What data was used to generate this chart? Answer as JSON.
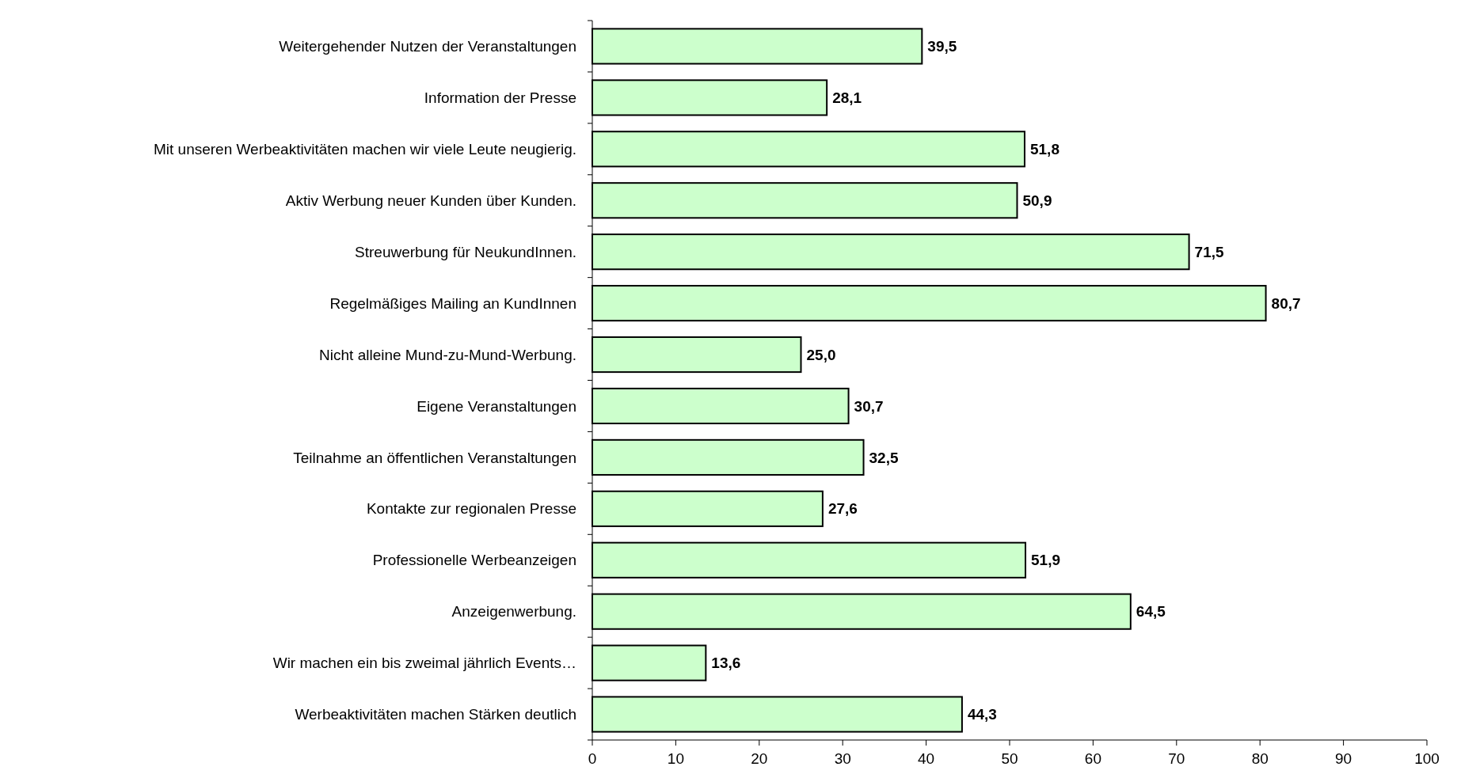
{
  "chart_data": {
    "type": "bar",
    "orientation": "horizontal",
    "categories": [
      "Weitergehender Nutzen der Veranstaltungen",
      "Information der Presse",
      "Mit unseren Werbeaktivitäten machen wir viele Leute neugierig.",
      "Aktiv Werbung neuer Kunden über Kunden.",
      "Streuwerbung für NeukundInnen.",
      "Regelmäßiges Mailing an KundInnen",
      "Nicht alleine Mund-zu-Mund-Werbung.",
      "Eigene Veranstaltungen",
      "Teilnahme an öffentlichen Veranstaltungen",
      "Kontakte zur regionalen Presse",
      "Professionelle Werbeanzeigen",
      "Anzeigenwerbung.",
      "Wir machen ein bis zweimal jährlich Events…",
      "Werbeaktivitäten machen Stärken deutlich"
    ],
    "values": [
      39.5,
      28.1,
      51.8,
      50.9,
      71.5,
      80.7,
      25.0,
      30.7,
      32.5,
      27.6,
      51.9,
      64.5,
      13.6,
      44.3
    ],
    "value_labels": [
      "39,5",
      "28,1",
      "51,8",
      "50,9",
      "71,5",
      "80,7",
      "25,0",
      "30,7",
      "32,5",
      "27,6",
      "51,9",
      "64,5",
      "13,6",
      "44,3"
    ],
    "color": "#ccffcc",
    "xlim": [
      0,
      100
    ],
    "xticks": [
      0,
      10,
      20,
      30,
      40,
      50,
      60,
      70,
      80,
      90,
      100
    ],
    "grid": false
  }
}
